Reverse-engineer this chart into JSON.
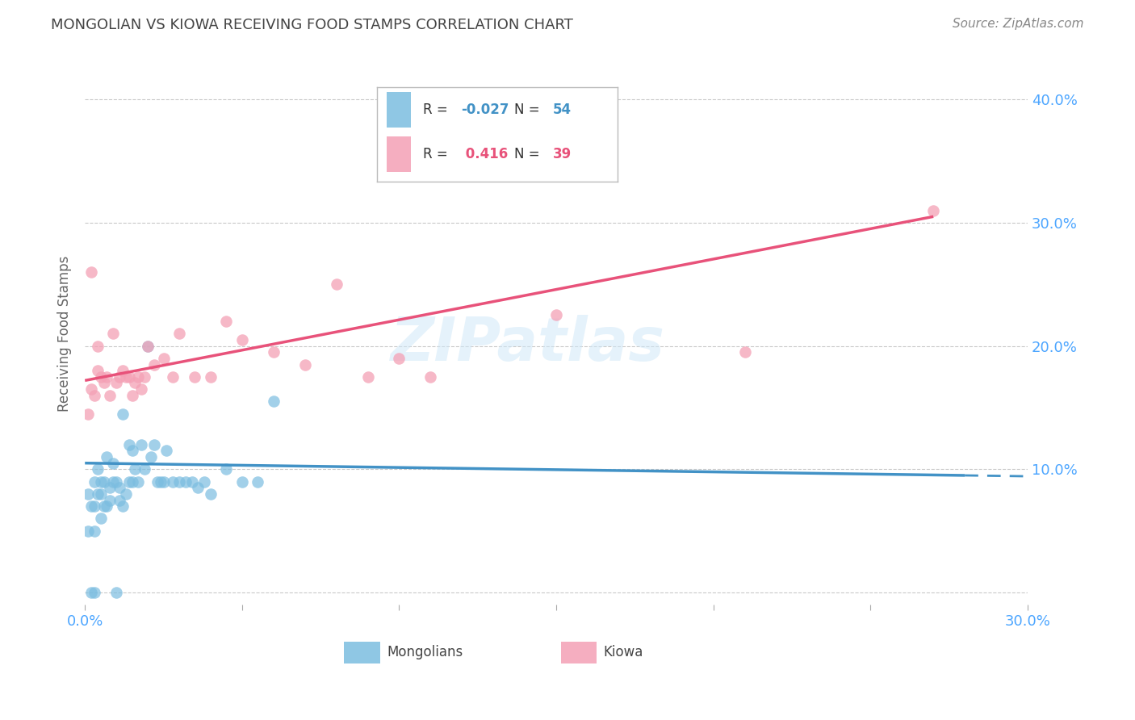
{
  "title": "MONGOLIAN VS KIOWA RECEIVING FOOD STAMPS CORRELATION CHART",
  "source": "Source: ZipAtlas.com",
  "ylabel": "Receiving Food Stamps",
  "xlim": [
    0.0,
    0.3
  ],
  "ylim": [
    -0.01,
    0.43
  ],
  "yticks": [
    0.0,
    0.1,
    0.2,
    0.3,
    0.4
  ],
  "ytick_labels": [
    "",
    "10.0%",
    "20.0%",
    "30.0%",
    "40.0%"
  ],
  "xticks": [
    0.0,
    0.05,
    0.1,
    0.15,
    0.2,
    0.25,
    0.3
  ],
  "xtick_labels": [
    "0.0%",
    "",
    "",
    "",
    "",
    "",
    "30.0%"
  ],
  "mongolian_R": -0.027,
  "mongolian_N": 54,
  "kiowa_R": 0.416,
  "kiowa_N": 39,
  "mongolian_color": "#7bbde0",
  "kiowa_color": "#f4a0b5",
  "mongolian_line_color": "#4292c6",
  "kiowa_line_color": "#e8527a",
  "bg_color": "#ffffff",
  "grid_color": "#bbbbbb",
  "axis_label_color": "#4da6ff",
  "title_color": "#444444",
  "mongolian_x": [
    0.001,
    0.001,
    0.002,
    0.002,
    0.003,
    0.003,
    0.003,
    0.003,
    0.004,
    0.004,
    0.005,
    0.005,
    0.005,
    0.006,
    0.006,
    0.007,
    0.007,
    0.008,
    0.008,
    0.009,
    0.009,
    0.01,
    0.01,
    0.011,
    0.011,
    0.012,
    0.012,
    0.013,
    0.014,
    0.014,
    0.015,
    0.015,
    0.016,
    0.017,
    0.018,
    0.019,
    0.02,
    0.021,
    0.022,
    0.023,
    0.024,
    0.025,
    0.026,
    0.028,
    0.03,
    0.032,
    0.034,
    0.036,
    0.038,
    0.04,
    0.045,
    0.05,
    0.055,
    0.06
  ],
  "mongolian_y": [
    0.05,
    0.08,
    0.0,
    0.07,
    0.0,
    0.05,
    0.07,
    0.09,
    0.08,
    0.1,
    0.06,
    0.08,
    0.09,
    0.07,
    0.09,
    0.07,
    0.11,
    0.075,
    0.085,
    0.09,
    0.105,
    0.0,
    0.09,
    0.085,
    0.075,
    0.07,
    0.145,
    0.08,
    0.12,
    0.09,
    0.09,
    0.115,
    0.1,
    0.09,
    0.12,
    0.1,
    0.2,
    0.11,
    0.12,
    0.09,
    0.09,
    0.09,
    0.115,
    0.09,
    0.09,
    0.09,
    0.09,
    0.085,
    0.09,
    0.08,
    0.1,
    0.09,
    0.09,
    0.155
  ],
  "kiowa_x": [
    0.001,
    0.002,
    0.002,
    0.003,
    0.004,
    0.004,
    0.005,
    0.006,
    0.007,
    0.008,
    0.009,
    0.01,
    0.011,
    0.012,
    0.013,
    0.014,
    0.015,
    0.016,
    0.017,
    0.018,
    0.019,
    0.02,
    0.022,
    0.025,
    0.028,
    0.03,
    0.035,
    0.04,
    0.045,
    0.05,
    0.06,
    0.07,
    0.08,
    0.09,
    0.1,
    0.11,
    0.15,
    0.21,
    0.27
  ],
  "kiowa_y": [
    0.145,
    0.26,
    0.165,
    0.16,
    0.18,
    0.2,
    0.175,
    0.17,
    0.175,
    0.16,
    0.21,
    0.17,
    0.175,
    0.18,
    0.175,
    0.175,
    0.16,
    0.17,
    0.175,
    0.165,
    0.175,
    0.2,
    0.185,
    0.19,
    0.175,
    0.21,
    0.175,
    0.175,
    0.22,
    0.205,
    0.195,
    0.185,
    0.25,
    0.175,
    0.19,
    0.175,
    0.225,
    0.195,
    0.31
  ],
  "watermark": "ZIPatlas"
}
